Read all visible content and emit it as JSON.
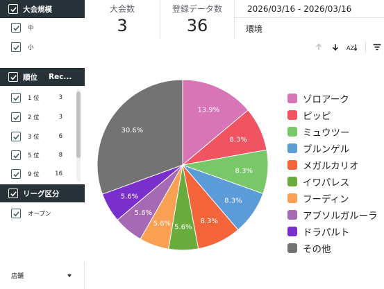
{
  "filters": {
    "size": {
      "title": "大会規模",
      "options": [
        {
          "label": "中",
          "checked": true
        },
        {
          "label": "小",
          "checked": true
        }
      ]
    },
    "rank": {
      "title": "順位",
      "count_header": "Rec...",
      "options": [
        {
          "label": "1 位",
          "count": "3"
        },
        {
          "label": "2 位",
          "count": "3"
        },
        {
          "label": "3 位",
          "count": "6"
        },
        {
          "label": "5 位",
          "count": "8"
        },
        {
          "label": "9 位",
          "count": "16"
        }
      ]
    },
    "league": {
      "title": "リーグ区分",
      "options": [
        {
          "label": "オープン",
          "checked": true
        }
      ]
    },
    "shop": {
      "label": "店舗"
    }
  },
  "scorecards": [
    {
      "label": "大会数",
      "value": "3"
    },
    {
      "label": "登録データ数",
      "value": "36"
    }
  ],
  "date_range": "2026/03/16 - 2026/03/16",
  "environment": {
    "label": "環境"
  },
  "toolbar": {
    "icons": [
      "arrow-up-icon",
      "arrow-down-icon",
      "sort-az-icon",
      "filter-menu-icon"
    ]
  },
  "colors": {
    "header_bg": "#263238",
    "accent": "#455a64"
  },
  "chart_data": {
    "type": "pie",
    "title": "",
    "series": [
      {
        "name": "ゾロアーク",
        "value": 13.9,
        "label": "13.9%",
        "color": "#d875b6"
      },
      {
        "name": "ピッピ",
        "value": 8.3,
        "label": "8.3%",
        "color": "#ef5460"
      },
      {
        "name": "ミュウツー",
        "value": 8.3,
        "label": "8.3%",
        "color": "#78c86a"
      },
      {
        "name": "ブルンゲル",
        "value": 8.3,
        "label": "8.3%",
        "color": "#5b9bd8"
      },
      {
        "name": "メガルカリオ",
        "value": 8.3,
        "label": "8.3%",
        "color": "#f4653c"
      },
      {
        "name": "イワパレス",
        "value": 5.6,
        "label": "5.6%",
        "color": "#6aab3e"
      },
      {
        "name": "フーディン",
        "value": 5.6,
        "label": "5.6%",
        "color": "#f9a052"
      },
      {
        "name": "アブソルガルーラ",
        "value": 5.6,
        "label": "5.6%",
        "color": "#a56ab3"
      },
      {
        "name": "ドラパルト",
        "value": 5.6,
        "label": "5.6%",
        "color": "#7a2fcc"
      },
      {
        "name": "その他",
        "value": 30.6,
        "label": "30.6%",
        "color": "#737373"
      }
    ],
    "start_angle": "12 o'clock",
    "direction": "clockwise",
    "legend_position": "right"
  }
}
